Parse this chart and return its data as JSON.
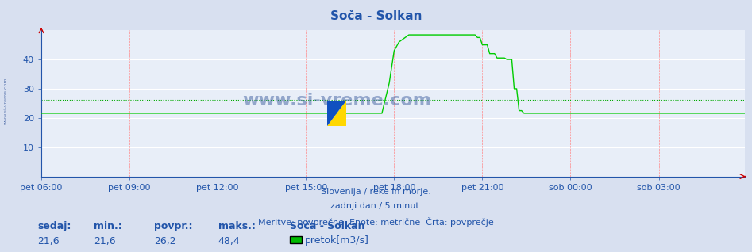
{
  "title": "Soča - Solkan",
  "bg_color": "#d8e0f0",
  "plot_bg_color": "#e8eef8",
  "grid_color_major": "#ffffff",
  "grid_color_minor": "#ffcccc",
  "line_color": "#00cc00",
  "avg_line_color": "#00aa00",
  "avg_value": 26.2,
  "y_min": 0,
  "y_max": 50,
  "y_ticks": [
    10,
    20,
    30,
    40
  ],
  "x_labels": [
    "pet 06:00",
    "pet 09:00",
    "pet 12:00",
    "pet 15:00",
    "pet 18:00",
    "pet 21:00",
    "sob 00:00",
    "sob 03:00"
  ],
  "x_ticks_pos": [
    0,
    36,
    72,
    108,
    144,
    180,
    216,
    252
  ],
  "total_points": 288,
  "subtitle_lines": [
    "Slovenija / reke in morje.",
    "zadnji dan / 5 minut.",
    "Meritve: povprečne  Enote: metrične  Črta: povprečje"
  ],
  "legend_labels": [
    "sedaj:",
    "min.:",
    "povpr.:",
    "maks.:",
    "Soča - Solkan"
  ],
  "legend_values": [
    "21,6",
    "21,6",
    "26,2",
    "48,4"
  ],
  "legend_series": "pretok[m3/s]",
  "legend_color": "#00bb00",
  "watermark": "www.si-vreme.com",
  "watermark_color": "#4060a0",
  "label_color": "#2255aa",
  "title_color": "#2255aa",
  "axis_color": "#2255aa",
  "tick_color": "#2255aa",
  "font_size_title": 11,
  "font_size_labels": 8,
  "font_size_subtitle": 8,
  "font_size_legend": 9,
  "arrow_color": "#cc0000",
  "vgrid_color": "#ff8888",
  "hgrid_color": "#ffffff"
}
